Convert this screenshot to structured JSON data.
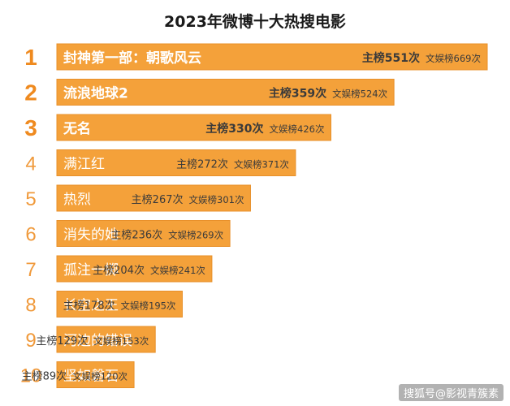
{
  "title": "2023年微博十大热搜电影",
  "watermark": "搜狐号@影视青簇素",
  "colors": {
    "bar": "#f4a13a",
    "bar_edge": "#e8902a",
    "rank_top": "#ef8a1f",
    "rank_rest": "#f09a3c",
    "text_on_bar": "#ffffff",
    "stats": "#3a3a3a"
  },
  "chart_data": {
    "type": "bar",
    "orientation": "horizontal",
    "title": "2023年微博十大热搜电影",
    "ranks": [
      "1",
      "2",
      "3",
      "4",
      "5",
      "6",
      "7",
      "8",
      "9",
      "10"
    ],
    "categories": [
      "封神第一部：朝歌风云",
      "流浪地球2",
      "无名",
      "满江红",
      "热烈",
      "消失的她",
      "孤注一掷",
      "长空之王",
      "河边的错误",
      "坚如磐石"
    ],
    "series": [
      {
        "name": "主榜",
        "values": [
          551,
          359,
          330,
          272,
          267,
          236,
          204,
          178,
          129,
          89
        ]
      },
      {
        "name": "文娱榜",
        "values": [
          669,
          524,
          426,
          371,
          301,
          269,
          241,
          195,
          153,
          120
        ]
      }
    ],
    "labels": {
      "main_prefix": "主榜",
      "ent_prefix": "文娱榜",
      "suffix": "次"
    },
    "bar_lengths_track": "文娱榜",
    "xlim": [
      0,
      669
    ],
    "legend": "none",
    "grid": false
  }
}
